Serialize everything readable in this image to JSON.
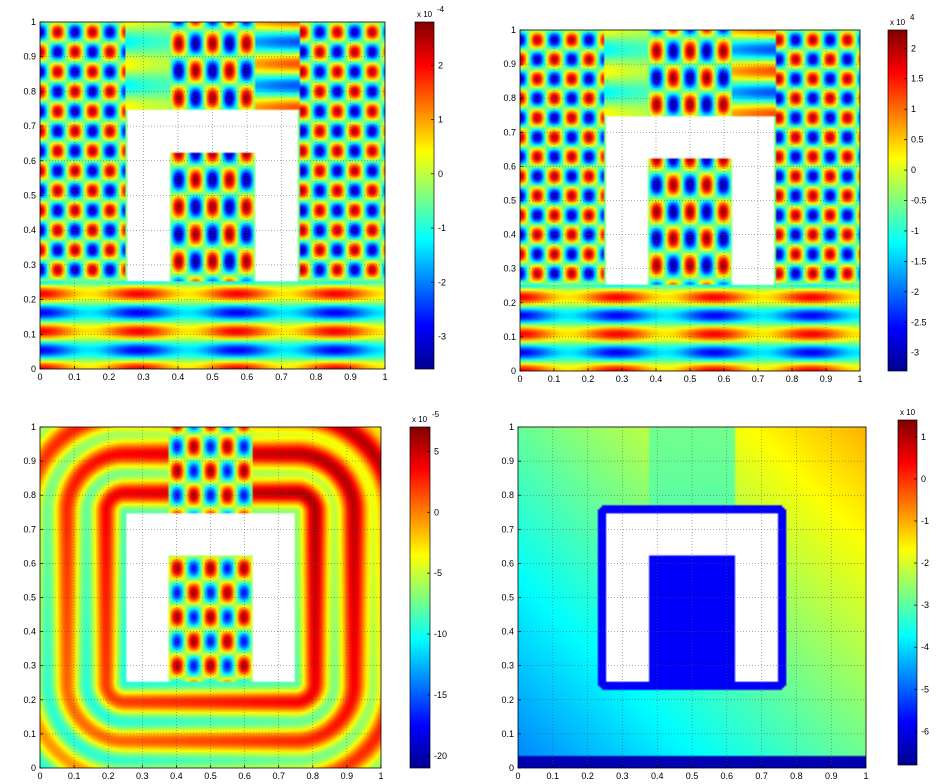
{
  "chart_data": [
    {
      "type": "heatmap",
      "title": "",
      "xlabel": "",
      "ylabel": "",
      "xlim": [
        0,
        1
      ],
      "ylim": [
        0,
        1
      ],
      "x_ticks": [
        "0",
        "0.1",
        "0.2",
        "0.3",
        "0.4",
        "0.5",
        "0.6",
        "0.7",
        "0.8",
        "0.9",
        "1"
      ],
      "y_ticks": [
        "0",
        "0.1",
        "0.2",
        "0.3",
        "0.4",
        "0.5",
        "0.6",
        "0.7",
        "0.8",
        "0.9",
        "1"
      ],
      "grid": true,
      "colormap": "jet",
      "colorbar": {
        "exponent_label": "x 10",
        "exponent": "-4",
        "clim": [
          -3.6,
          2.8
        ],
        "ticks": [
          "2",
          "1",
          "0",
          "-1",
          "-2",
          "-3"
        ]
      },
      "pattern": "mode"
    },
    {
      "type": "heatmap",
      "title": "",
      "xlabel": "",
      "ylabel": "",
      "xlim": [
        0,
        1
      ],
      "ylim": [
        0,
        1
      ],
      "x_ticks": [
        "0",
        "0.1",
        "0.2",
        "0.3",
        "0.4",
        "0.5",
        "0.6",
        "0.7",
        "0.8",
        "0.9",
        "1"
      ],
      "y_ticks": [
        "0",
        "0.1",
        "0.2",
        "0.3",
        "0.4",
        "0.5",
        "0.6",
        "0.7",
        "0.8",
        "0.9",
        "1"
      ],
      "grid": true,
      "colormap": "jet",
      "colorbar": {
        "exponent_label": "x 10",
        "exponent": "4",
        "clim": [
          -3.3,
          2.3
        ],
        "ticks": [
          "2",
          "1.5",
          "1",
          "0.5",
          "0",
          "-0.5",
          "-1",
          "-1.5",
          "-2",
          "-2.5",
          "-3"
        ]
      },
      "pattern": "mode"
    },
    {
      "type": "heatmap",
      "title": "",
      "xlabel": "",
      "ylabel": "",
      "xlim": [
        0,
        1
      ],
      "ylim": [
        0,
        1
      ],
      "x_ticks": [
        "0",
        "0.1",
        "0.2",
        "0.3",
        "0.4",
        "0.5",
        "0.6",
        "0.7",
        "0.8",
        "0.9",
        "1"
      ],
      "y_ticks": [
        "0",
        "0.1",
        "0.2",
        "0.3",
        "0.4",
        "0.5",
        "0.6",
        "0.7",
        "0.8",
        "0.9",
        "1"
      ],
      "grid": true,
      "colormap": "jet",
      "colorbar": {
        "exponent_label": "x 10",
        "exponent": "-5",
        "clim": [
          -21,
          7
        ],
        "ticks": [
          "5",
          "0",
          "-5",
          "-10",
          "-15",
          "-20"
        ]
      },
      "pattern": "rings"
    },
    {
      "type": "heatmap",
      "title": "",
      "xlabel": "",
      "ylabel": "",
      "xlim": [
        0,
        1
      ],
      "ylim": [
        0,
        1
      ],
      "x_ticks": [
        "0",
        "0.1",
        "0.2",
        "0.3",
        "0.4",
        "0.5",
        "0.6",
        "0.7",
        "0.8",
        "0.9",
        "1"
      ],
      "y_ticks": [
        "0",
        "0.1",
        "0.2",
        "0.3",
        "0.4",
        "0.5",
        "0.6",
        "0.7",
        "0.8",
        "0.9",
        "1"
      ],
      "grid": true,
      "colormap": "jet",
      "colorbar": {
        "exponent_label": "x 10",
        "exponent": "",
        "clim": [
          -6.8,
          1.4
        ],
        "ticks": [
          "1",
          "0",
          "-1",
          "-2",
          "-3",
          "-4",
          "-5",
          "-6"
        ]
      },
      "pattern": "smooth"
    }
  ]
}
